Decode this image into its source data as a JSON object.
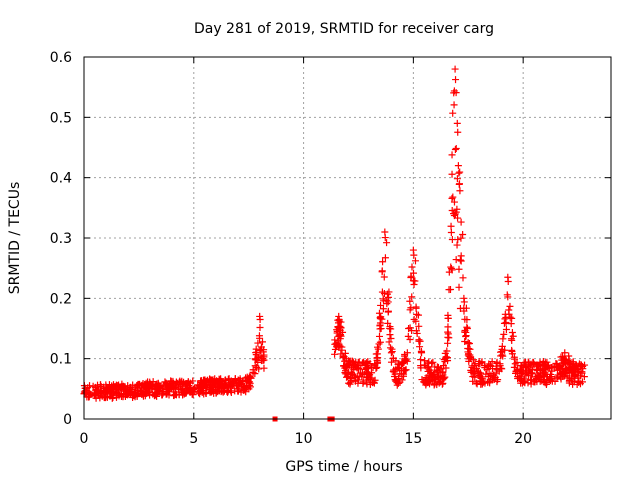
{
  "chart_data": {
    "type": "scatter",
    "title": "Day 281 of 2019, SRMTID for receiver carg",
    "xlabel": "GPS time / hours",
    "ylabel": "SRMTID / TECUs",
    "xlim": [
      0,
      24
    ],
    "ylim": [
      0,
      0.6
    ],
    "x_ticks": [
      0,
      5,
      10,
      15,
      20
    ],
    "y_ticks": [
      0,
      0.1,
      0.2,
      0.3,
      0.4,
      0.5,
      0.6
    ],
    "x_tick_labels": [
      "0",
      "5",
      "10",
      "15",
      "20"
    ],
    "y_tick_labels": [
      "0",
      "0.1",
      "0.2",
      "0.3",
      "0.4",
      "0.5",
      "0.6"
    ],
    "grid": true,
    "marker": "+",
    "color": "#ff0000",
    "segments": [
      {
        "x_start": 0.0,
        "x_end": 8.2,
        "baseline": 0.04,
        "spread": 0.025
      },
      {
        "x_start": 11.4,
        "x_end": 22.8,
        "baseline": 0.07,
        "spread": 0.04
      }
    ],
    "gap_markers": [
      {
        "x": 8.7,
        "y": 0.0
      },
      {
        "x": 11.2,
        "y": 0.0
      },
      {
        "x": 11.3,
        "y": 0.0
      }
    ],
    "peaks": [
      {
        "x": 8.0,
        "y": 0.17
      },
      {
        "x": 11.6,
        "y": 0.17
      },
      {
        "x": 13.7,
        "y": 0.31
      },
      {
        "x": 15.0,
        "y": 0.28
      },
      {
        "x": 16.9,
        "y": 0.58
      },
      {
        "x": 17.0,
        "y": 0.49
      },
      {
        "x": 17.05,
        "y": 0.42
      },
      {
        "x": 17.1,
        "y": 0.39
      },
      {
        "x": 17.3,
        "y": 0.2
      },
      {
        "x": 19.3,
        "y": 0.235
      },
      {
        "x": 21.9,
        "y": 0.095
      }
    ]
  }
}
